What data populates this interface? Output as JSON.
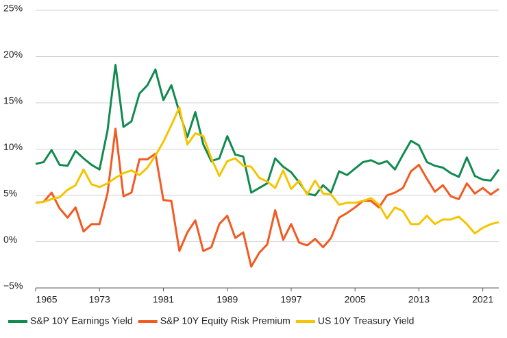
{
  "chart_data": {
    "type": "line",
    "x": [
      1965,
      1966,
      1967,
      1968,
      1969,
      1970,
      1971,
      1972,
      1973,
      1974,
      1975,
      1976,
      1977,
      1978,
      1979,
      1980,
      1981,
      1982,
      1983,
      1984,
      1985,
      1986,
      1987,
      1988,
      1989,
      1990,
      1991,
      1992,
      1993,
      1994,
      1995,
      1996,
      1997,
      1998,
      1999,
      2000,
      2001,
      2002,
      2003,
      2004,
      2005,
      2006,
      2007,
      2008,
      2009,
      2010,
      2011,
      2012,
      2013,
      2014,
      2015,
      2016,
      2017,
      2018,
      2019,
      2020,
      2021,
      2022,
      2023
    ],
    "series": [
      {
        "name": "S&P 10Y Earnings Yield",
        "color": "#128a4f",
        "values": [
          8.4,
          8.6,
          9.9,
          8.3,
          8.2,
          9.8,
          9.0,
          8.3,
          7.8,
          12.0,
          19.1,
          12.4,
          13.0,
          16.0,
          16.9,
          18.6,
          15.3,
          16.9,
          14.0,
          11.3,
          14.0,
          10.5,
          8.7,
          9.0,
          11.4,
          9.4,
          9.2,
          5.3,
          5.8,
          6.3,
          9.0,
          8.1,
          7.5,
          6.4,
          5.2,
          5.0,
          6.1,
          5.3,
          7.6,
          7.2,
          7.9,
          8.6,
          8.8,
          8.4,
          8.7,
          7.8,
          9.4,
          10.9,
          10.4,
          8.6,
          8.2,
          8.0,
          7.4,
          7.0,
          9.1,
          7.1,
          6.7,
          6.6,
          7.8
        ]
      },
      {
        "name": "S&P 10Y Equity Risk Premium",
        "color": "#f25a22",
        "values": [
          4.2,
          4.3,
          5.3,
          3.6,
          2.6,
          3.7,
          1.1,
          1.9,
          1.9,
          5.2,
          12.2,
          4.9,
          5.3,
          8.9,
          8.9,
          9.5,
          4.5,
          4.4,
          -1.0,
          1.0,
          2.3,
          -1.0,
          -0.6,
          1.9,
          2.8,
          0.4,
          1.0,
          -2.7,
          -1.2,
          -0.3,
          3.4,
          0.2,
          1.9,
          -0.1,
          -0.4,
          0.3,
          -0.6,
          0.4,
          2.6,
          3.1,
          3.7,
          4.4,
          4.4,
          3.7,
          5.0,
          5.3,
          5.8,
          7.6,
          8.3,
          6.8,
          5.4,
          6.1,
          4.9,
          4.6,
          6.3,
          5.2,
          5.8,
          5.1,
          5.7
        ]
      },
      {
        "name": "US 10Y Treasury Yield",
        "color": "#f5c400",
        "values": [
          4.2,
          4.3,
          4.6,
          4.8,
          5.6,
          6.1,
          7.8,
          6.2,
          5.9,
          6.3,
          6.9,
          7.4,
          7.7,
          7.2,
          8.0,
          9.3,
          10.8,
          12.6,
          14.5,
          10.5,
          11.7,
          11.4,
          9.0,
          7.1,
          8.7,
          9.0,
          8.2,
          8.1,
          6.9,
          6.5,
          5.8,
          7.7,
          5.7,
          6.6,
          5.1,
          6.6,
          5.2,
          5.1,
          4.0,
          4.2,
          4.2,
          4.4,
          4.7,
          4.0,
          2.5,
          3.7,
          3.3,
          1.9,
          1.9,
          2.8,
          1.9,
          2.4,
          2.4,
          2.7,
          1.9,
          0.9,
          1.5,
          1.9,
          2.1
        ]
      }
    ],
    "xlim": [
      1965,
      2023
    ],
    "xticks": [
      1965,
      1973,
      1981,
      1989,
      1997,
      2005,
      2013,
      2021
    ],
    "ylim": [
      -5,
      25
    ],
    "yticks": [
      {
        "value": -5,
        "label": "−5%"
      },
      {
        "value": 0,
        "label": "0%"
      },
      {
        "value": 5,
        "label": "5%"
      },
      {
        "value": 10,
        "label": "10%"
      },
      {
        "value": 15,
        "label": "15%"
      },
      {
        "value": 20,
        "label": "20%"
      },
      {
        "value": 25,
        "label": "25%"
      }
    ],
    "grid": true,
    "legend": "bottom"
  }
}
